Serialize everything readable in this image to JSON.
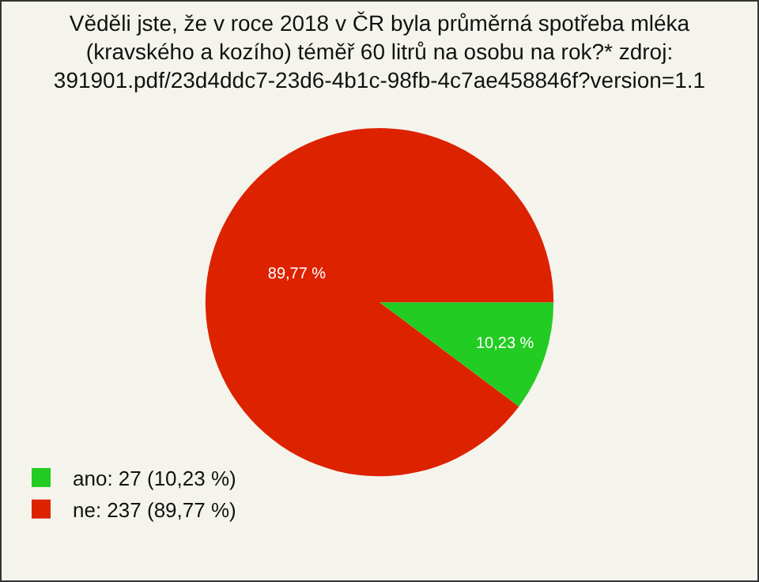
{
  "chart_data": {
    "type": "pie",
    "title": "Věděli jste, že v roce 2018 v ČR byla průměrná spotřeba mléka\n(kravského a kozího) téměř 60 litrů na osobu na rok?* zdroj:\n391901.pdf/23d4ddc7-23d6-4b1c-98fb-4c7ae458846f?version=1.1",
    "categories": [
      "ano: 27 (10,23 %)",
      "ne: 237 (89,77 %)"
    ],
    "values": [
      10.23,
      89.77
    ],
    "colors": [
      "#22cc22",
      "#dd2200"
    ],
    "value_labels": [
      "10,23 %",
      "89,77 %"
    ],
    "legend": "bottom left"
  }
}
